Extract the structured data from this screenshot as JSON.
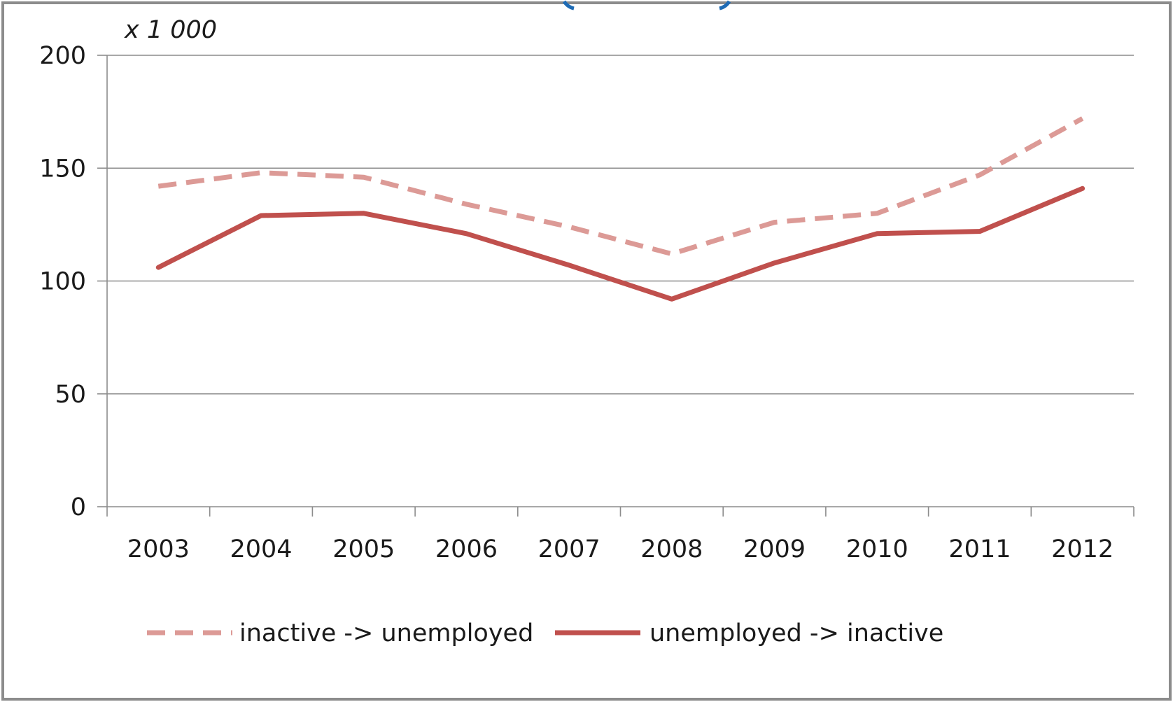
{
  "chart_data": {
    "type": "line",
    "title": "",
    "xlabel": "",
    "ylabel": "",
    "unit_label": "x 1 000",
    "categories": [
      "2003",
      "2004",
      "2005",
      "2006",
      "2007",
      "2008",
      "2009",
      "2010",
      "2011",
      "2012"
    ],
    "ylim": [
      0,
      200
    ],
    "yticks": [
      0,
      50,
      100,
      150,
      200
    ],
    "grid": true,
    "legend_position": "bottom",
    "series": [
      {
        "name": "inactive -> unemployed",
        "values": [
          142,
          148,
          146,
          134,
          124,
          112,
          126,
          130,
          147,
          172
        ],
        "color": "#dc9a96",
        "style": "dashed"
      },
      {
        "name": "unemployed -> inactive",
        "values": [
          106,
          129,
          130,
          121,
          107,
          92,
          108,
          121,
          122,
          141
        ],
        "color": "#c0504d",
        "style": "solid"
      }
    ]
  },
  "colors": {
    "frame_border": "#8c8c8c",
    "gridline": "#8c8c8c",
    "axis": "#8c8c8c",
    "accent_blue": "#1e6bb5"
  }
}
